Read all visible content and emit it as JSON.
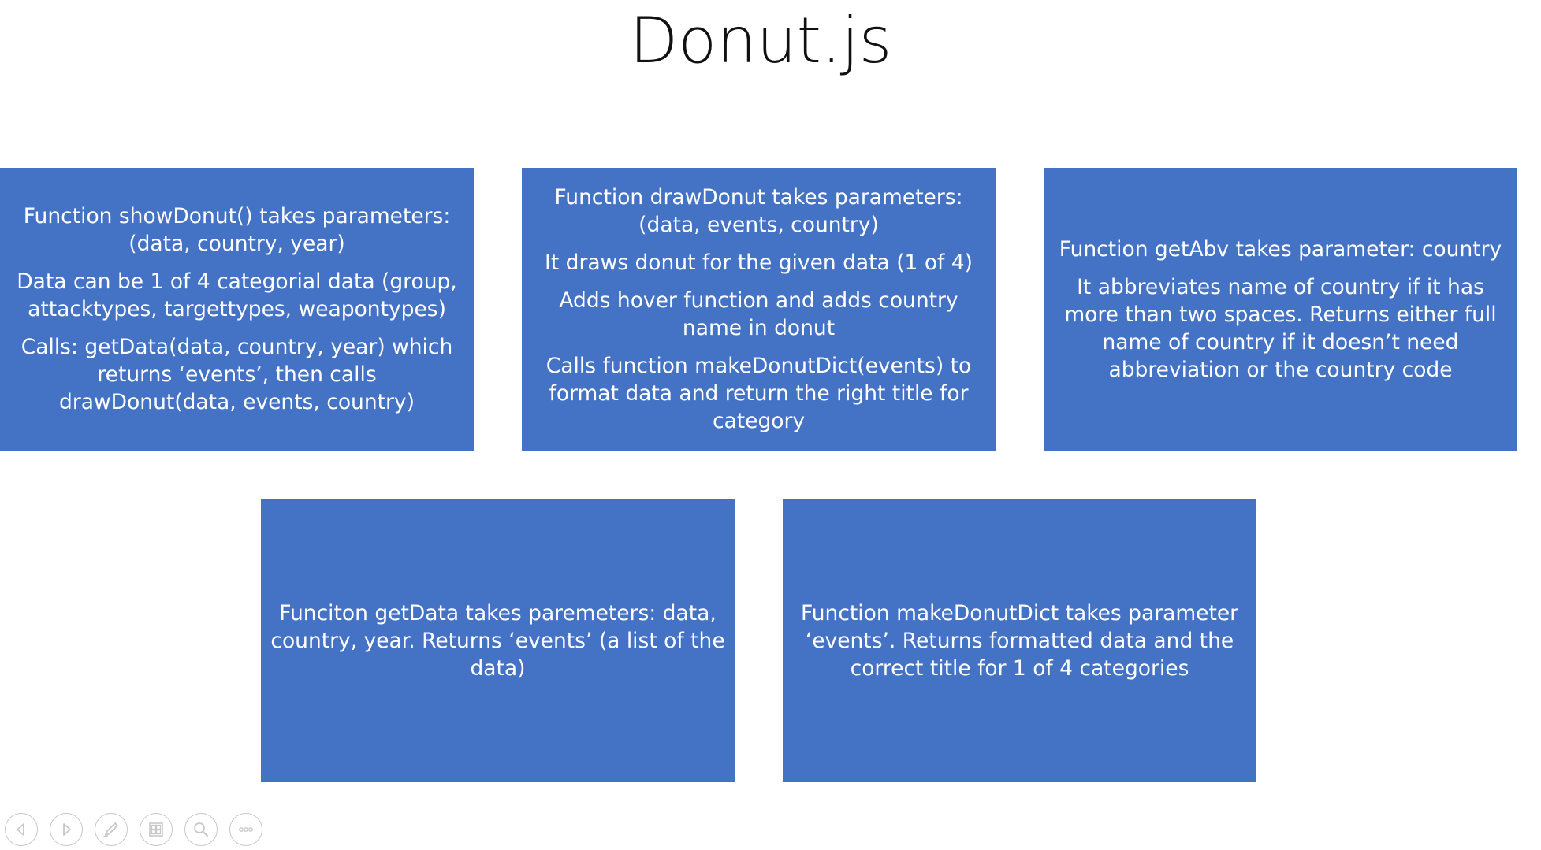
{
  "slide": {
    "title": "Donut.js"
  },
  "boxes": {
    "showdonut": [
      "Function showDonut() takes parameters: (data, country, year)",
      "Data can be 1 of 4 categorial data (group, attacktypes, targettypes, weapontypes)",
      "Calls: getData(data, country, year) which returns ‘events’, then calls drawDonut(data, events, country)"
    ],
    "drawdonut": [
      "Function drawDonut takes parameters: (data, events, country)",
      "It draws donut for the given data (1 of 4)",
      "Adds hover function and adds country name in donut",
      "Calls function makeDonutDict(events) to format data and return the right title for category"
    ],
    "getabv": [
      "Function getAbv takes parameter: country",
      "It abbreviates name of country if it has more than two spaces. Returns either full name of country if it doesn’t need abbreviation or the country code"
    ],
    "getdata": [
      "Funciton getData takes paremeters: data, country, year. Returns ‘events’ (a list of the data)"
    ],
    "makedonutdict": [
      "Function makeDonutDict takes parameter ‘events’. Returns formatted data and the correct title for 1 of 4 categories"
    ]
  },
  "colors": {
    "box_fill": "#4472c4",
    "box_text": "#ffffff",
    "title_text": "#111111",
    "toolbar_icon": "#c8c8c8"
  },
  "toolbar": {
    "icons": [
      "previous-icon",
      "next-icon",
      "pen-icon",
      "slides-icon",
      "zoom-icon",
      "more-icon"
    ]
  }
}
